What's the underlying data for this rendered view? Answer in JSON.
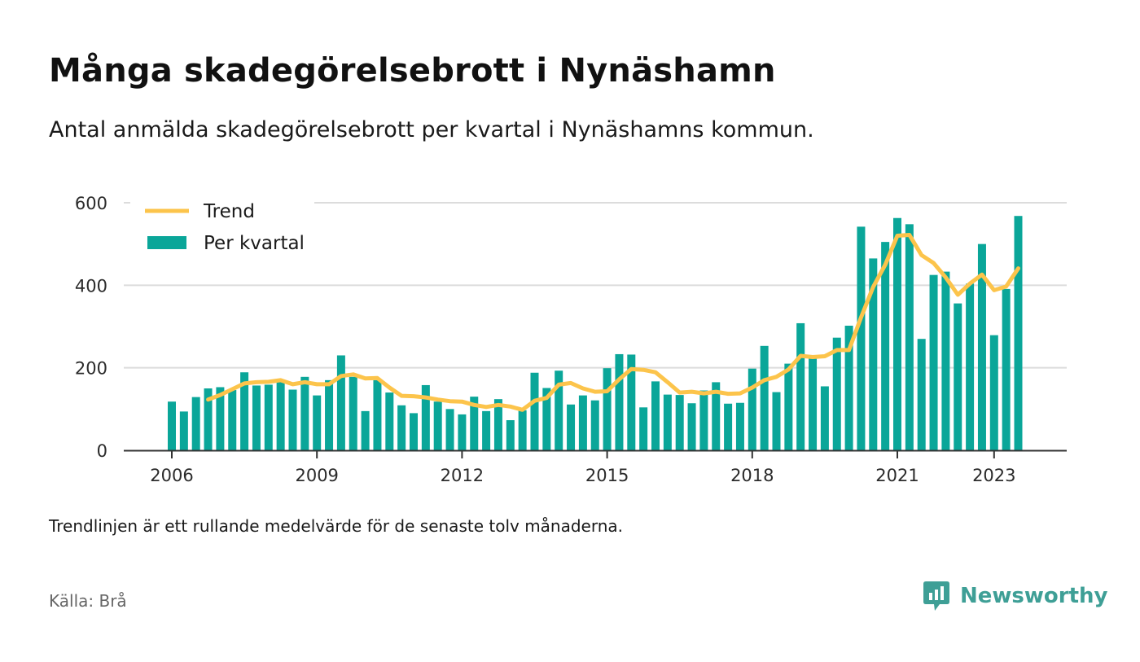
{
  "title": "Många skadegörelsebrott i Nynäshamn",
  "subtitle": "Antal anmälda skadegörelsebrott per kvartal i Nynäshamns kommun.",
  "note": "Trendlinjen är ett rullande medelvärde för de senaste tolv månaderna.",
  "source": "Källa: Brå",
  "brand": {
    "name": "Newsworthy",
    "icon": "newsworthy-logo-icon",
    "color": "#3e9f96"
  },
  "colors": {
    "bars": "#0aa699",
    "trend": "#fcc44b",
    "grid": "#dcdcdc",
    "axis": "#333333"
  },
  "chart_data": {
    "type": "bar",
    "ylim": [
      0,
      600
    ],
    "yticks": [
      "0",
      "200",
      "400",
      "600"
    ],
    "xticks": [
      {
        "label": "2006",
        "year": 2006
      },
      {
        "label": "2009",
        "year": 2009
      },
      {
        "label": "2012",
        "year": 2012
      },
      {
        "label": "2015",
        "year": 2015
      },
      {
        "label": "2018",
        "year": 2018
      },
      {
        "label": "2021",
        "year": 2021
      },
      {
        "label": "2023",
        "year": 2023
      }
    ],
    "start": "2006 Q1",
    "grid": true,
    "legend_position": "top-left",
    "legend": [
      {
        "label": "Trend",
        "kind": "line",
        "color": "#fcc44b"
      },
      {
        "label": "Per kvartal",
        "kind": "bar",
        "color": "#0aa699"
      }
    ],
    "series": [
      {
        "name": "Per kvartal",
        "type": "bar",
        "values": [
          118,
          94,
          129,
          150,
          153,
          146,
          189,
          157,
          159,
          168,
          147,
          178,
          133,
          170,
          230,
          178,
          95,
          170,
          140,
          109,
          90,
          158,
          118,
          100,
          87,
          130,
          95,
          124,
          73,
          97,
          188,
          151,
          193,
          111,
          133,
          121,
          199,
          233,
          232,
          104,
          167,
          135,
          134,
          114,
          145,
          165,
          113,
          115,
          198,
          253,
          141,
          210,
          308,
          228,
          155,
          273,
          302,
          542,
          465,
          505,
          563,
          548,
          270,
          425,
          433,
          356,
          404,
          500,
          279,
          391,
          568
        ]
      },
      {
        "name": "Trend",
        "type": "line",
        "values": [
          null,
          null,
          null,
          123,
          134,
          148,
          162,
          165,
          166,
          170,
          160,
          165,
          160,
          160,
          180,
          184,
          174,
          175,
          152,
          132,
          131,
          128,
          123,
          119,
          118,
          110,
          105,
          110,
          106,
          98,
          120,
          127,
          159,
          163,
          150,
          142,
          143,
          172,
          197,
          195,
          189,
          165,
          140,
          142,
          138,
          142,
          137,
          138,
          152,
          170,
          178,
          196,
          229,
          226,
          228,
          243,
          243,
          322,
          396,
          450,
          520,
          522,
          473,
          454,
          419,
          377,
          404,
          426,
          388,
          397,
          441
        ]
      }
    ]
  }
}
